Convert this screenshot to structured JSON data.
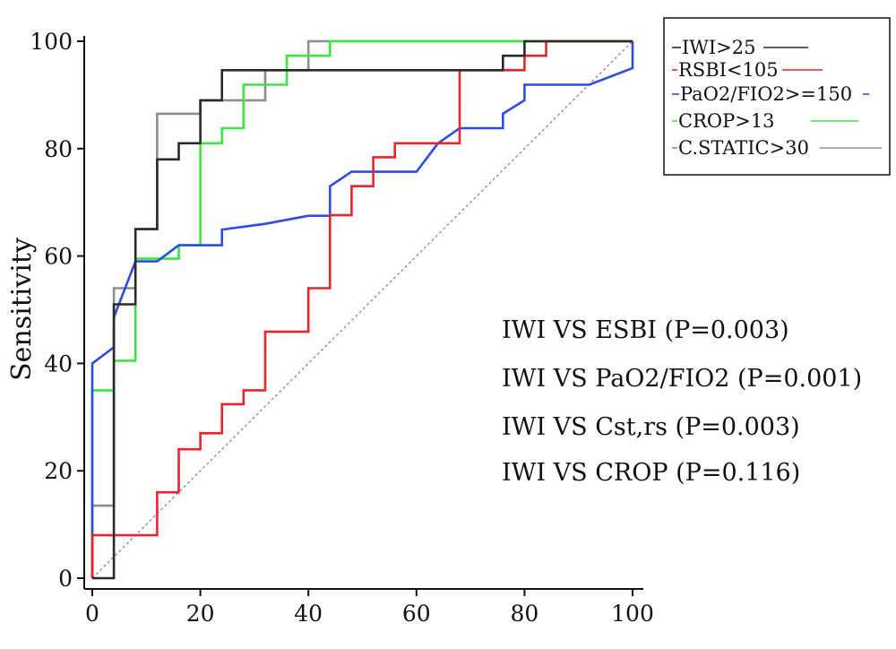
{
  "chart_data": {
    "type": "line",
    "title": "",
    "xlabel": "",
    "ylabel": "Sensitivity",
    "xlim": [
      0,
      100
    ],
    "ylim": [
      0,
      100
    ],
    "x_ticks": [
      "0",
      "20",
      "40",
      "60",
      "80",
      "100"
    ],
    "y_ticks": [
      "0",
      "20",
      "40",
      "60",
      "80",
      "100"
    ],
    "grid": false,
    "legend_position": "top-right",
    "series": [
      {
        "name": "IWI>25",
        "color": "#2a2a2a",
        "points": [
          [
            0,
            0
          ],
          [
            0,
            0
          ],
          [
            4,
            0
          ],
          [
            4,
            51
          ],
          [
            8,
            51
          ],
          [
            8,
            65
          ],
          [
            12,
            65
          ],
          [
            12,
            78
          ],
          [
            16,
            78
          ],
          [
            16,
            81
          ],
          [
            20,
            81
          ],
          [
            20,
            89
          ],
          [
            24,
            89
          ],
          [
            24,
            94.6
          ],
          [
            76,
            94.6
          ],
          [
            76,
            97.3
          ],
          [
            80,
            97.3
          ],
          [
            80,
            100
          ],
          [
            100,
            100
          ]
        ]
      },
      {
        "name": "RSBI<105",
        "color": "#e8242c",
        "points": [
          [
            0,
            0
          ],
          [
            0,
            8
          ],
          [
            12,
            8
          ],
          [
            12,
            16
          ],
          [
            16,
            16
          ],
          [
            16,
            24
          ],
          [
            20,
            24
          ],
          [
            20,
            27
          ],
          [
            24,
            27
          ],
          [
            24,
            32.4
          ],
          [
            28,
            32.4
          ],
          [
            28,
            35
          ],
          [
            32,
            35
          ],
          [
            32,
            45.9
          ],
          [
            40,
            45.9
          ],
          [
            40,
            54
          ],
          [
            44,
            54
          ],
          [
            44,
            67.6
          ],
          [
            48,
            67.6
          ],
          [
            48,
            73
          ],
          [
            52,
            73
          ],
          [
            52,
            78.4
          ],
          [
            56,
            78.4
          ],
          [
            56,
            81
          ],
          [
            64,
            81
          ],
          [
            68,
            81
          ],
          [
            68,
            94.6
          ],
          [
            80,
            94.6
          ],
          [
            80,
            97.3
          ],
          [
            84,
            97.3
          ],
          [
            84,
            100
          ],
          [
            100,
            100
          ]
        ]
      },
      {
        "name": "PaO2/FIO2>=150",
        "color": "#2d4de0",
        "points": [
          [
            0,
            0
          ],
          [
            0,
            40
          ],
          [
            4,
            43
          ],
          [
            4,
            48.6
          ],
          [
            8,
            59
          ],
          [
            12,
            59
          ],
          [
            16,
            62
          ],
          [
            20,
            62
          ],
          [
            24,
            62
          ],
          [
            24,
            64.9
          ],
          [
            32,
            66
          ],
          [
            40,
            67.5
          ],
          [
            44,
            67.5
          ],
          [
            44,
            73
          ],
          [
            48,
            75.7
          ],
          [
            60,
            75.7
          ],
          [
            64,
            81
          ],
          [
            68,
            83.8
          ],
          [
            76,
            83.8
          ],
          [
            76,
            86.5
          ],
          [
            80,
            89
          ],
          [
            80,
            91.9
          ],
          [
            92,
            91.9
          ],
          [
            100,
            95
          ],
          [
            100,
            100
          ]
        ]
      },
      {
        "name": "CROP>13",
        "color": "#3fe53f",
        "points": [
          [
            0,
            0
          ],
          [
            0,
            35
          ],
          [
            4,
            35
          ],
          [
            4,
            40.5
          ],
          [
            8,
            40.5
          ],
          [
            8,
            59.5
          ],
          [
            16,
            59.5
          ],
          [
            16,
            62
          ],
          [
            20,
            62
          ],
          [
            20,
            81
          ],
          [
            24,
            81
          ],
          [
            24,
            83.8
          ],
          [
            28,
            83.8
          ],
          [
            28,
            91.9
          ],
          [
            32,
            91.9
          ],
          [
            36,
            91.9
          ],
          [
            36,
            97.3
          ],
          [
            44,
            97.3
          ],
          [
            44,
            100
          ],
          [
            100,
            100
          ]
        ]
      },
      {
        "name": "C.STATIC>30",
        "color": "#8e8e8e",
        "points": [
          [
            0,
            0
          ],
          [
            0,
            13.5
          ],
          [
            4,
            13.5
          ],
          [
            4,
            54
          ],
          [
            8,
            54
          ],
          [
            8,
            65
          ],
          [
            12,
            65
          ],
          [
            12,
            86.5
          ],
          [
            20,
            86.5
          ],
          [
            20,
            89
          ],
          [
            32,
            89
          ],
          [
            32,
            94.6
          ],
          [
            40,
            94.6
          ],
          [
            40,
            100
          ],
          [
            100,
            100
          ]
        ]
      },
      {
        "name": "",
        "color": "#9b6b9b",
        "dashed": true,
        "points": [
          [
            0,
            0
          ],
          [
            100,
            100
          ]
        ]
      }
    ],
    "annotations": [
      "IWI VS ESBI (P=0.003)",
      "IWI VS PaO2/FIO2 (P=0.001)",
      "IWI VS Cst,rs (P=0.003)",
      "IWI VS CROP (P=0.116)"
    ]
  }
}
